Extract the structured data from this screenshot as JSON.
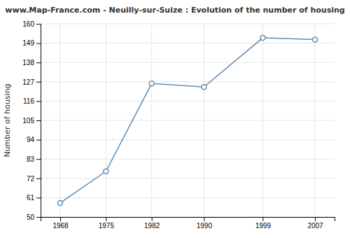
{
  "chart_data": {
    "type": "line",
    "title": "www.Map-France.com - Neuilly-sur-Suize : Evolution of the number of housing",
    "ylabel": "Number of housing",
    "x": [
      1968,
      1975,
      1982,
      1990,
      1999,
      2007
    ],
    "values": [
      58,
      76,
      126,
      124,
      152,
      151
    ],
    "color": "#5b8db8",
    "marker": "circle",
    "xlim": [
      1965,
      2010
    ],
    "xticks": [
      1968,
      1975,
      1982,
      1990,
      1999,
      2007
    ],
    "ylim": [
      50,
      160
    ],
    "yticks": [
      50,
      61,
      72,
      83,
      94,
      105,
      116,
      127,
      138,
      149,
      160
    ],
    "grid": true
  }
}
